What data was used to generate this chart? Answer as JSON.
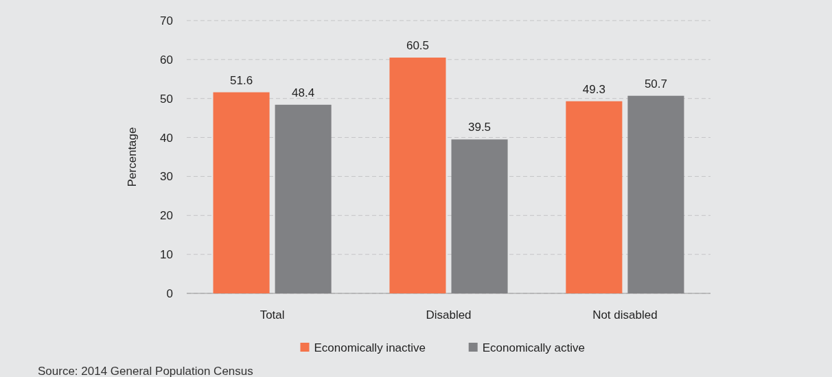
{
  "chart_data": {
    "type": "bar",
    "ylabel": "Percentage",
    "categories": [
      "Total",
      "Disabled",
      "Not disabled"
    ],
    "series": [
      {
        "name": "Economically inactive",
        "color": "#f4734a",
        "values": [
          51.6,
          60.5,
          49.3
        ]
      },
      {
        "name": "Economically active",
        "color": "#808184",
        "values": [
          48.4,
          39.5,
          50.7
        ]
      }
    ],
    "ylim": [
      0,
      70
    ],
    "yticks": [
      0,
      10,
      20,
      30,
      40,
      50,
      60,
      70
    ],
    "grid": "y",
    "legend": "bottom",
    "data_labels": true,
    "annotations": [
      "Source: 2014 General Population Census"
    ]
  }
}
